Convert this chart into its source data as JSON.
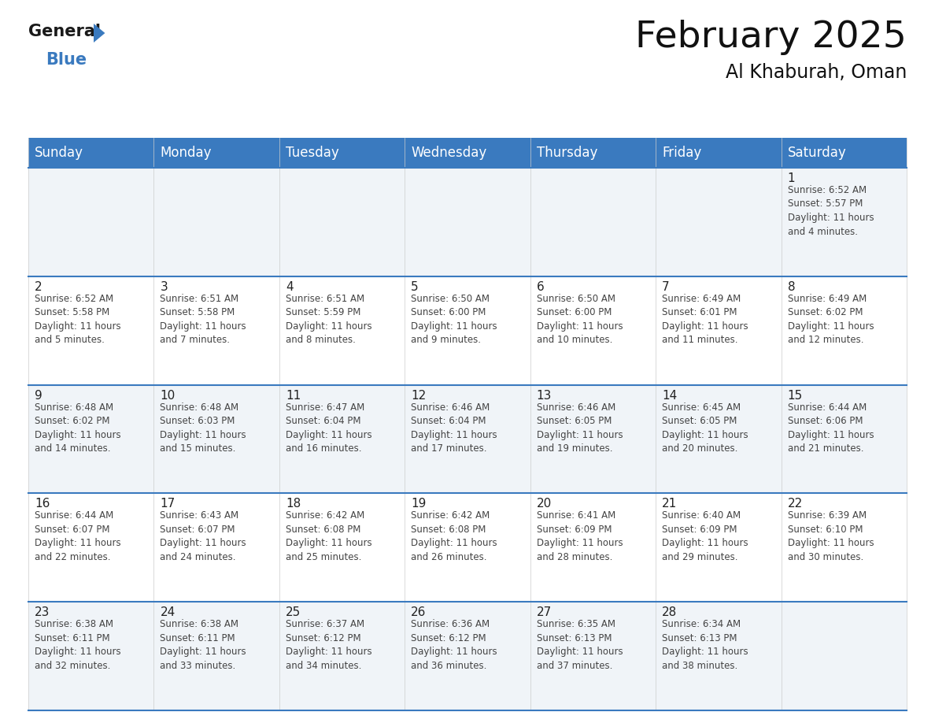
{
  "title": "February 2025",
  "subtitle": "Al Khaburah, Oman",
  "header_bg_color": "#3a7abf",
  "header_text_color": "#ffffff",
  "day_headers": [
    "Sunday",
    "Monday",
    "Tuesday",
    "Wednesday",
    "Thursday",
    "Friday",
    "Saturday"
  ],
  "weeks": [
    [
      {
        "day": null,
        "info": null
      },
      {
        "day": null,
        "info": null
      },
      {
        "day": null,
        "info": null
      },
      {
        "day": null,
        "info": null
      },
      {
        "day": null,
        "info": null
      },
      {
        "day": null,
        "info": null
      },
      {
        "day": 1,
        "info": "Sunrise: 6:52 AM\nSunset: 5:57 PM\nDaylight: 11 hours\nand 4 minutes."
      }
    ],
    [
      {
        "day": 2,
        "info": "Sunrise: 6:52 AM\nSunset: 5:58 PM\nDaylight: 11 hours\nand 5 minutes."
      },
      {
        "day": 3,
        "info": "Sunrise: 6:51 AM\nSunset: 5:58 PM\nDaylight: 11 hours\nand 7 minutes."
      },
      {
        "day": 4,
        "info": "Sunrise: 6:51 AM\nSunset: 5:59 PM\nDaylight: 11 hours\nand 8 minutes."
      },
      {
        "day": 5,
        "info": "Sunrise: 6:50 AM\nSunset: 6:00 PM\nDaylight: 11 hours\nand 9 minutes."
      },
      {
        "day": 6,
        "info": "Sunrise: 6:50 AM\nSunset: 6:00 PM\nDaylight: 11 hours\nand 10 minutes."
      },
      {
        "day": 7,
        "info": "Sunrise: 6:49 AM\nSunset: 6:01 PM\nDaylight: 11 hours\nand 11 minutes."
      },
      {
        "day": 8,
        "info": "Sunrise: 6:49 AM\nSunset: 6:02 PM\nDaylight: 11 hours\nand 12 minutes."
      }
    ],
    [
      {
        "day": 9,
        "info": "Sunrise: 6:48 AM\nSunset: 6:02 PM\nDaylight: 11 hours\nand 14 minutes."
      },
      {
        "day": 10,
        "info": "Sunrise: 6:48 AM\nSunset: 6:03 PM\nDaylight: 11 hours\nand 15 minutes."
      },
      {
        "day": 11,
        "info": "Sunrise: 6:47 AM\nSunset: 6:04 PM\nDaylight: 11 hours\nand 16 minutes."
      },
      {
        "day": 12,
        "info": "Sunrise: 6:46 AM\nSunset: 6:04 PM\nDaylight: 11 hours\nand 17 minutes."
      },
      {
        "day": 13,
        "info": "Sunrise: 6:46 AM\nSunset: 6:05 PM\nDaylight: 11 hours\nand 19 minutes."
      },
      {
        "day": 14,
        "info": "Sunrise: 6:45 AM\nSunset: 6:05 PM\nDaylight: 11 hours\nand 20 minutes."
      },
      {
        "day": 15,
        "info": "Sunrise: 6:44 AM\nSunset: 6:06 PM\nDaylight: 11 hours\nand 21 minutes."
      }
    ],
    [
      {
        "day": 16,
        "info": "Sunrise: 6:44 AM\nSunset: 6:07 PM\nDaylight: 11 hours\nand 22 minutes."
      },
      {
        "day": 17,
        "info": "Sunrise: 6:43 AM\nSunset: 6:07 PM\nDaylight: 11 hours\nand 24 minutes."
      },
      {
        "day": 18,
        "info": "Sunrise: 6:42 AM\nSunset: 6:08 PM\nDaylight: 11 hours\nand 25 minutes."
      },
      {
        "day": 19,
        "info": "Sunrise: 6:42 AM\nSunset: 6:08 PM\nDaylight: 11 hours\nand 26 minutes."
      },
      {
        "day": 20,
        "info": "Sunrise: 6:41 AM\nSunset: 6:09 PM\nDaylight: 11 hours\nand 28 minutes."
      },
      {
        "day": 21,
        "info": "Sunrise: 6:40 AM\nSunset: 6:09 PM\nDaylight: 11 hours\nand 29 minutes."
      },
      {
        "day": 22,
        "info": "Sunrise: 6:39 AM\nSunset: 6:10 PM\nDaylight: 11 hours\nand 30 minutes."
      }
    ],
    [
      {
        "day": 23,
        "info": "Sunrise: 6:38 AM\nSunset: 6:11 PM\nDaylight: 11 hours\nand 32 minutes."
      },
      {
        "day": 24,
        "info": "Sunrise: 6:38 AM\nSunset: 6:11 PM\nDaylight: 11 hours\nand 33 minutes."
      },
      {
        "day": 25,
        "info": "Sunrise: 6:37 AM\nSunset: 6:12 PM\nDaylight: 11 hours\nand 34 minutes."
      },
      {
        "day": 26,
        "info": "Sunrise: 6:36 AM\nSunset: 6:12 PM\nDaylight: 11 hours\nand 36 minutes."
      },
      {
        "day": 27,
        "info": "Sunrise: 6:35 AM\nSunset: 6:13 PM\nDaylight: 11 hours\nand 37 minutes."
      },
      {
        "day": 28,
        "info": "Sunrise: 6:34 AM\nSunset: 6:13 PM\nDaylight: 11 hours\nand 38 minutes."
      },
      {
        "day": null,
        "info": null
      }
    ]
  ],
  "logo_color_general": "#1a1a1a",
  "logo_color_blue": "#3a7abf",
  "logo_triangle_color": "#3a7abf",
  "title_fontsize": 34,
  "subtitle_fontsize": 17,
  "header_fontsize": 12,
  "day_num_fontsize": 11,
  "info_fontsize": 8.5,
  "line_color": "#3a7abf",
  "cell_bg_white": "#ffffff",
  "cell_bg_light": "#f0f4f8",
  "border_color": "#3a7abf"
}
